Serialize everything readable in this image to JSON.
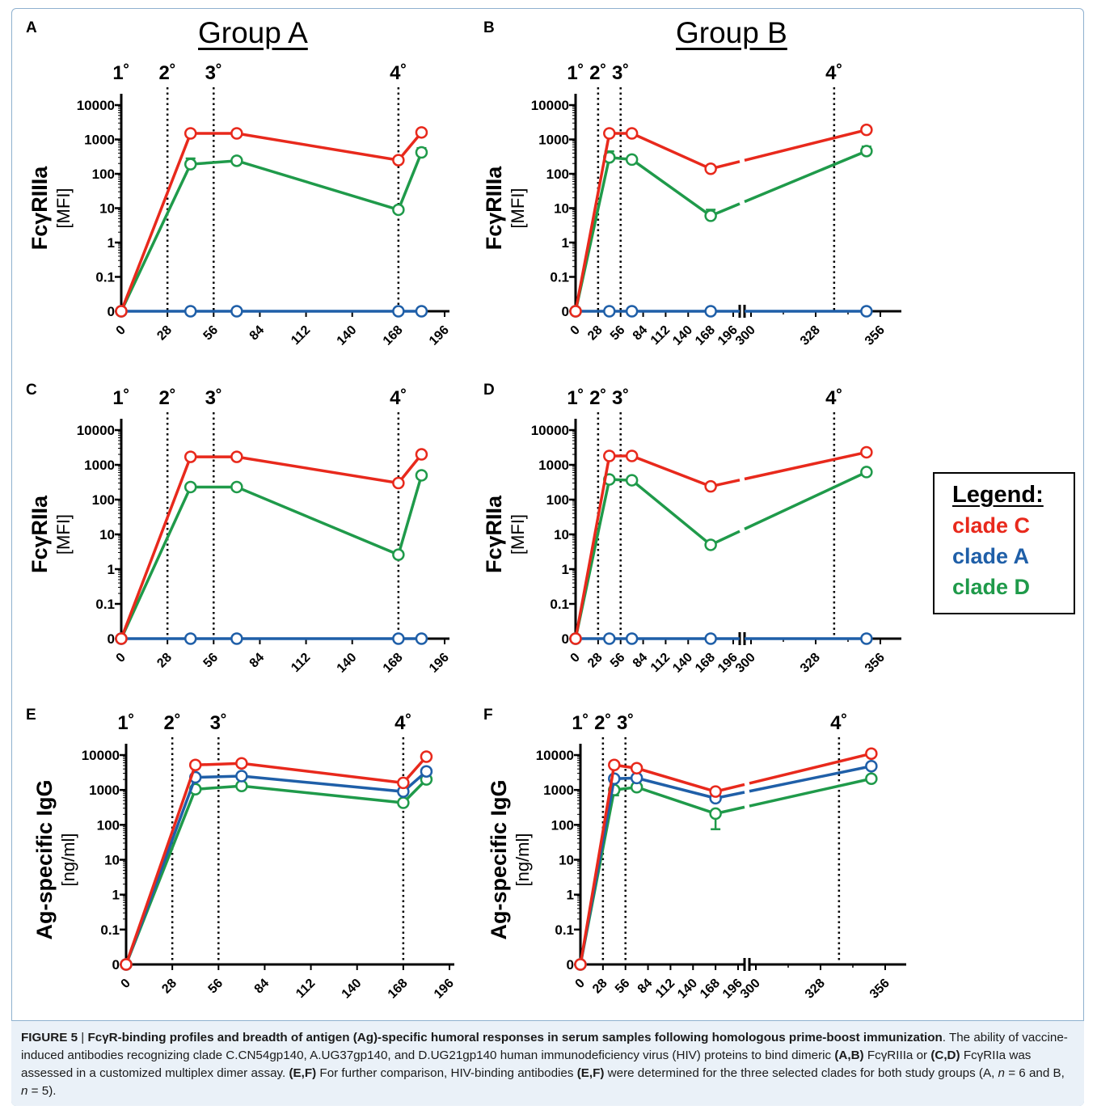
{
  "groups": {
    "a_title": "Group A",
    "b_title": "Group B"
  },
  "legend": {
    "title": "Legend:",
    "items": [
      {
        "label": "clade C",
        "color": "#e8291c"
      },
      {
        "label": "clade A",
        "color": "#1f5fa8"
      },
      {
        "label": "clade D",
        "color": "#1f9a4a"
      }
    ]
  },
  "caption": {
    "fig_label": "FIGURE 5",
    "sep": "|",
    "title": "FcγR-binding profiles and breadth of antigen (Ag)-specific humoral responses in serum samples following homologous prime-boost immunization",
    "text_1": ". The ability of vaccine-induced antibodies recognizing clade C.CN54gp140, A.UG37gp140, and D.UG21gp140 human immunodeficiency virus (HIV) proteins to bind dimeric ",
    "ref_ab": "(A,B)",
    "text_2": " FcγRIIIa or ",
    "ref_cd": "(C,D)",
    "text_3": " FcγRIIa was assessed in a customized multiplex dimer assay. ",
    "ref_ef1": "(E,F)",
    "text_4": " For further comparison, HIV-binding antibodies ",
    "ref_ef2": "(E,F)",
    "text_5": " were determined for the three selected clades for both study groups (A, ",
    "n_italic_1": "n",
    "text_6": " = 6 and B, ",
    "n_italic_2": "n",
    "text_7": " = 5)."
  },
  "chart_data": [
    {
      "panel": "A",
      "type": "line",
      "group": "Group A",
      "ylabel": "FcγRIIIa",
      "yunit": "[MFI]",
      "yscale": "log-with-zero",
      "yticks": [
        "0",
        "0.1",
        "1",
        "10",
        "100",
        "1000",
        "10000"
      ],
      "xticks": [
        0,
        28,
        56,
        84,
        112,
        140,
        168,
        196
      ],
      "xlim": [
        0,
        196
      ],
      "immunizations": [
        {
          "label": "1˚",
          "x": 0
        },
        {
          "label": "2˚",
          "x": 28
        },
        {
          "label": "3˚",
          "x": 56
        },
        {
          "label": "4˚",
          "x": 168
        }
      ],
      "x": [
        0,
        42,
        70,
        168,
        182
      ],
      "series": [
        {
          "name": "clade C",
          "color": "#e8291c",
          "values": [
            0,
            1500,
            1500,
            250,
            1600
          ]
        },
        {
          "name": "clade A",
          "color": "#1f5fa8",
          "values": [
            0,
            0,
            0,
            0,
            0
          ]
        },
        {
          "name": "clade D",
          "color": "#1f9a4a",
          "values": [
            0,
            190,
            240,
            9,
            420
          ],
          "error_high": [
            0,
            280,
            0,
            0,
            560
          ]
        }
      ]
    },
    {
      "panel": "B",
      "type": "line",
      "group": "Group B",
      "ylabel": "FcγRIIIa",
      "yunit": "[MFI]",
      "yscale": "log-with-zero",
      "axis_break": [
        196,
        300
      ],
      "yticks": [
        "0",
        "0.1",
        "1",
        "10",
        "100",
        "1000",
        "10000"
      ],
      "xticks": [
        0,
        28,
        56,
        84,
        112,
        140,
        168,
        196,
        300,
        328,
        356
      ],
      "immunizations": [
        {
          "label": "1˚",
          "x": 0
        },
        {
          "label": "2˚",
          "x": 28
        },
        {
          "label": "3˚",
          "x": 56
        },
        {
          "label": "4˚",
          "x": 336
        }
      ],
      "x": [
        0,
        42,
        70,
        168,
        350
      ],
      "series": [
        {
          "name": "clade C",
          "color": "#e8291c",
          "values": [
            0,
            1500,
            1500,
            140,
            1900
          ]
        },
        {
          "name": "clade A",
          "color": "#1f5fa8",
          "values": [
            0,
            0,
            0,
            0,
            0
          ]
        },
        {
          "name": "clade D",
          "color": "#1f9a4a",
          "values": [
            0,
            300,
            260,
            6,
            460
          ],
          "error_high": [
            0,
            450,
            0,
            9,
            620
          ]
        }
      ]
    },
    {
      "panel": "C",
      "type": "line",
      "group": "Group A",
      "ylabel": "FcγRIIa",
      "yunit": "[MFI]",
      "yscale": "log-with-zero",
      "yticks": [
        "0",
        "0.1",
        "1",
        "10",
        "100",
        "1000",
        "10000"
      ],
      "xticks": [
        0,
        28,
        56,
        84,
        112,
        140,
        168,
        196
      ],
      "xlim": [
        0,
        196
      ],
      "immunizations": [
        {
          "label": "1˚",
          "x": 0
        },
        {
          "label": "2˚",
          "x": 28
        },
        {
          "label": "3˚",
          "x": 56
        },
        {
          "label": "4˚",
          "x": 168
        }
      ],
      "x": [
        0,
        42,
        70,
        168,
        182
      ],
      "series": [
        {
          "name": "clade C",
          "color": "#e8291c",
          "values": [
            0,
            1700,
            1700,
            300,
            2000
          ]
        },
        {
          "name": "clade A",
          "color": "#1f5fa8",
          "values": [
            0,
            0,
            0,
            0,
            0
          ]
        },
        {
          "name": "clade D",
          "color": "#1f9a4a",
          "values": [
            0,
            230,
            230,
            2.6,
            500
          ]
        }
      ]
    },
    {
      "panel": "D",
      "type": "line",
      "group": "Group B",
      "ylabel": "FcγRIIa",
      "yunit": "[MFI]",
      "yscale": "log-with-zero",
      "axis_break": [
        196,
        300
      ],
      "yticks": [
        "0",
        "0.1",
        "1",
        "10",
        "100",
        "1000",
        "10000"
      ],
      "xticks": [
        0,
        28,
        56,
        84,
        112,
        140,
        168,
        196,
        300,
        328,
        356
      ],
      "immunizations": [
        {
          "label": "1˚",
          "x": 0
        },
        {
          "label": "2˚",
          "x": 28
        },
        {
          "label": "3˚",
          "x": 56
        },
        {
          "label": "4˚",
          "x": 336
        }
      ],
      "x": [
        0,
        42,
        70,
        168,
        350
      ],
      "series": [
        {
          "name": "clade C",
          "color": "#e8291c",
          "values": [
            0,
            1800,
            1800,
            240,
            2300
          ]
        },
        {
          "name": "clade A",
          "color": "#1f5fa8",
          "values": [
            0,
            0,
            0,
            0,
            0
          ]
        },
        {
          "name": "clade D",
          "color": "#1f9a4a",
          "values": [
            0,
            380,
            360,
            5,
            620
          ]
        }
      ]
    },
    {
      "panel": "E",
      "type": "line",
      "group": "Group A",
      "ylabel": "Ag-specific IgG",
      "yunit": "[ng/ml]",
      "yscale": "log-with-zero",
      "yticks": [
        "0",
        "0.1",
        "1",
        "10",
        "100",
        "1000",
        "10000"
      ],
      "xticks": [
        0,
        28,
        56,
        84,
        112,
        140,
        168,
        196
      ],
      "xlim": [
        0,
        196
      ],
      "immunizations": [
        {
          "label": "1˚",
          "x": 0
        },
        {
          "label": "2˚",
          "x": 28
        },
        {
          "label": "3˚",
          "x": 56
        },
        {
          "label": "4˚",
          "x": 168
        }
      ],
      "x": [
        0,
        42,
        70,
        168,
        182
      ],
      "series": [
        {
          "name": "clade C",
          "color": "#e8291c",
          "values": [
            0,
            5200,
            5800,
            1600,
            9000
          ]
        },
        {
          "name": "clade A",
          "color": "#1f5fa8",
          "values": [
            0,
            2300,
            2500,
            900,
            3400
          ]
        },
        {
          "name": "clade D",
          "color": "#1f9a4a",
          "values": [
            0,
            1050,
            1300,
            430,
            2000
          ]
        }
      ]
    },
    {
      "panel": "F",
      "type": "line",
      "group": "Group B",
      "ylabel": "Ag-specific IgG",
      "yunit": "[ng/ml]",
      "yscale": "log-with-zero",
      "axis_break": [
        196,
        300
      ],
      "yticks": [
        "0",
        "0.1",
        "1",
        "10",
        "100",
        "1000",
        "10000"
      ],
      "xticks": [
        0,
        28,
        56,
        84,
        112,
        140,
        168,
        196,
        300,
        328,
        356
      ],
      "immunizations": [
        {
          "label": "1˚",
          "x": 0
        },
        {
          "label": "2˚",
          "x": 28
        },
        {
          "label": "3˚",
          "x": 56
        },
        {
          "label": "4˚",
          "x": 336
        }
      ],
      "x": [
        0,
        42,
        70,
        168,
        350
      ],
      "series": [
        {
          "name": "clade C",
          "color": "#e8291c",
          "values": [
            0,
            5200,
            4200,
            900,
            11000
          ]
        },
        {
          "name": "clade A",
          "color": "#1f5fa8",
          "values": [
            0,
            2100,
            2200,
            580,
            4800
          ]
        },
        {
          "name": "clade D",
          "color": "#1f9a4a",
          "values": [
            0,
            1000,
            1200,
            210,
            2100
          ],
          "error_low": [
            0,
            700,
            0,
            75,
            0
          ]
        }
      ]
    }
  ]
}
